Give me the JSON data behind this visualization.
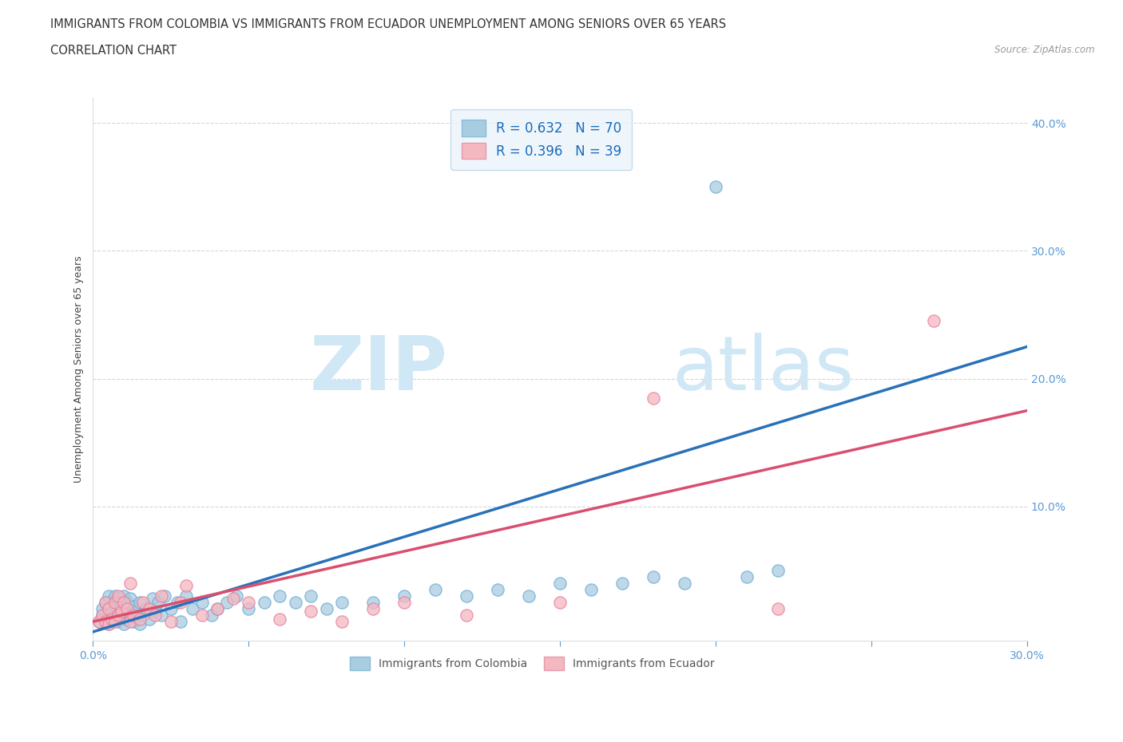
{
  "title_line1": "IMMIGRANTS FROM COLOMBIA VS IMMIGRANTS FROM ECUADOR UNEMPLOYMENT AMONG SENIORS OVER 65 YEARS",
  "title_line2": "CORRELATION CHART",
  "source_text": "Source: ZipAtlas.com",
  "ylabel": "Unemployment Among Seniors over 65 years",
  "xlabel_colombia": "Immigrants from Colombia",
  "xlabel_ecuador": "Immigrants from Ecuador",
  "colombia_R": 0.632,
  "colombia_N": 70,
  "ecuador_R": 0.396,
  "ecuador_N": 39,
  "xlim": [
    0.0,
    0.3
  ],
  "ylim": [
    -0.005,
    0.42
  ],
  "xticks": [
    0.0,
    0.05,
    0.1,
    0.15,
    0.2,
    0.25,
    0.3
  ],
  "yticks": [
    0.1,
    0.2,
    0.3,
    0.4
  ],
  "colombia_color": "#a8cce0",
  "ecuador_color": "#f4b8c1",
  "colombia_line_color": "#2971b8",
  "ecuador_line_color": "#d94f6e",
  "background_color": "#ffffff",
  "watermark_color": "#d0e8f5",
  "colombia_scatter_x": [
    0.002,
    0.003,
    0.003,
    0.004,
    0.004,
    0.005,
    0.005,
    0.005,
    0.005,
    0.006,
    0.006,
    0.007,
    0.007,
    0.007,
    0.008,
    0.008,
    0.008,
    0.009,
    0.009,
    0.01,
    0.01,
    0.01,
    0.011,
    0.011,
    0.012,
    0.012,
    0.013,
    0.013,
    0.014,
    0.015,
    0.015,
    0.016,
    0.017,
    0.018,
    0.019,
    0.02,
    0.021,
    0.022,
    0.023,
    0.025,
    0.027,
    0.028,
    0.03,
    0.032,
    0.035,
    0.038,
    0.04,
    0.043,
    0.046,
    0.05,
    0.055,
    0.06,
    0.065,
    0.07,
    0.075,
    0.08,
    0.09,
    0.1,
    0.11,
    0.12,
    0.13,
    0.14,
    0.15,
    0.16,
    0.17,
    0.18,
    0.19,
    0.2,
    0.21,
    0.22
  ],
  "colombia_scatter_y": [
    0.01,
    0.015,
    0.02,
    0.01,
    0.025,
    0.008,
    0.015,
    0.02,
    0.03,
    0.01,
    0.018,
    0.012,
    0.022,
    0.03,
    0.01,
    0.02,
    0.028,
    0.015,
    0.025,
    0.008,
    0.018,
    0.03,
    0.012,
    0.025,
    0.015,
    0.028,
    0.01,
    0.022,
    0.018,
    0.008,
    0.025,
    0.015,
    0.02,
    0.012,
    0.028,
    0.018,
    0.025,
    0.015,
    0.03,
    0.02,
    0.025,
    0.01,
    0.03,
    0.02,
    0.025,
    0.015,
    0.02,
    0.025,
    0.03,
    0.02,
    0.025,
    0.03,
    0.025,
    0.03,
    0.02,
    0.025,
    0.025,
    0.03,
    0.035,
    0.03,
    0.035,
    0.03,
    0.04,
    0.035,
    0.04,
    0.045,
    0.04,
    0.35,
    0.045,
    0.05
  ],
  "ecuador_scatter_x": [
    0.002,
    0.003,
    0.004,
    0.004,
    0.005,
    0.005,
    0.006,
    0.007,
    0.007,
    0.008,
    0.008,
    0.009,
    0.01,
    0.011,
    0.012,
    0.012,
    0.013,
    0.015,
    0.016,
    0.018,
    0.02,
    0.022,
    0.025,
    0.028,
    0.03,
    0.035,
    0.04,
    0.045,
    0.05,
    0.06,
    0.07,
    0.08,
    0.09,
    0.1,
    0.12,
    0.15,
    0.18,
    0.22,
    0.27
  ],
  "ecuador_scatter_y": [
    0.01,
    0.015,
    0.01,
    0.025,
    0.008,
    0.02,
    0.012,
    0.01,
    0.025,
    0.015,
    0.03,
    0.018,
    0.025,
    0.02,
    0.01,
    0.04,
    0.015,
    0.012,
    0.025,
    0.02,
    0.015,
    0.03,
    0.01,
    0.025,
    0.038,
    0.015,
    0.02,
    0.028,
    0.025,
    0.012,
    0.018,
    0.01,
    0.02,
    0.025,
    0.015,
    0.025,
    0.185,
    0.02,
    0.245
  ],
  "colombia_trend_x": [
    0.0,
    0.3
  ],
  "colombia_trend_y": [
    0.002,
    0.225
  ],
  "ecuador_trend_x": [
    0.0,
    0.3
  ],
  "ecuador_trend_y": [
    0.01,
    0.175
  ],
  "legend_box_color": "#eaf4fb",
  "legend_border_color": "#b8d4e8"
}
